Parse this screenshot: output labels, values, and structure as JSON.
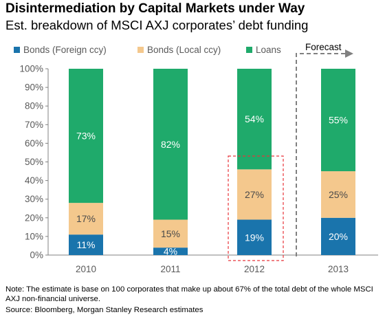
{
  "header": {
    "title": "Disintermediation by Capital Markets under Way",
    "subtitle": "Est. breakdown of MSCI AXJ corporates’ debt funding"
  },
  "footer": {
    "note": "Note: The estimate is base on 100 corporates that make up about 67% of the total debt of the whole MSCI AXJ non-financial universe.",
    "source": "Source: Bloomberg, Morgan Stanley Research estimates"
  },
  "chart_data": {
    "type": "bar",
    "stacked": true,
    "title": "Disintermediation by Capital Markets under Way",
    "subtitle": "Est. breakdown of MSCI AXJ corporates’ debt funding",
    "categories": [
      "2010",
      "2011",
      "2012",
      "2013"
    ],
    "series": [
      {
        "name": "Bonds (Foreign ccy)",
        "color": "#1a74ac",
        "label_color": "#ffffff",
        "values": [
          11,
          4,
          19,
          20
        ],
        "labels": [
          "11%",
          "4%",
          "19%",
          "20%"
        ]
      },
      {
        "name": "Bonds (Local ccy)",
        "color": "#f4c88d",
        "label_color": "#4a4a4a",
        "values": [
          17,
          15,
          27,
          25
        ],
        "labels": [
          "17%",
          "15%",
          "27%",
          "25%"
        ]
      },
      {
        "name": "Loans",
        "color": "#1faa6b",
        "label_color": "#ffffff",
        "values": [
          73,
          82,
          54,
          55
        ],
        "labels": [
          "73%",
          "82%",
          "54%",
          "55%"
        ]
      }
    ],
    "ylim": [
      0,
      100
    ],
    "yticks": [
      "0%",
      "10%",
      "20%",
      "30%",
      "40%",
      "50%",
      "60%",
      "70%",
      "80%",
      "90%",
      "100%"
    ],
    "legend_position": "top",
    "grid": false,
    "annotations": {
      "forecast_label": "Forecast",
      "forecast_category": "2013",
      "highlight_category": "2012",
      "highlight_color": "#e8343a"
    }
  }
}
